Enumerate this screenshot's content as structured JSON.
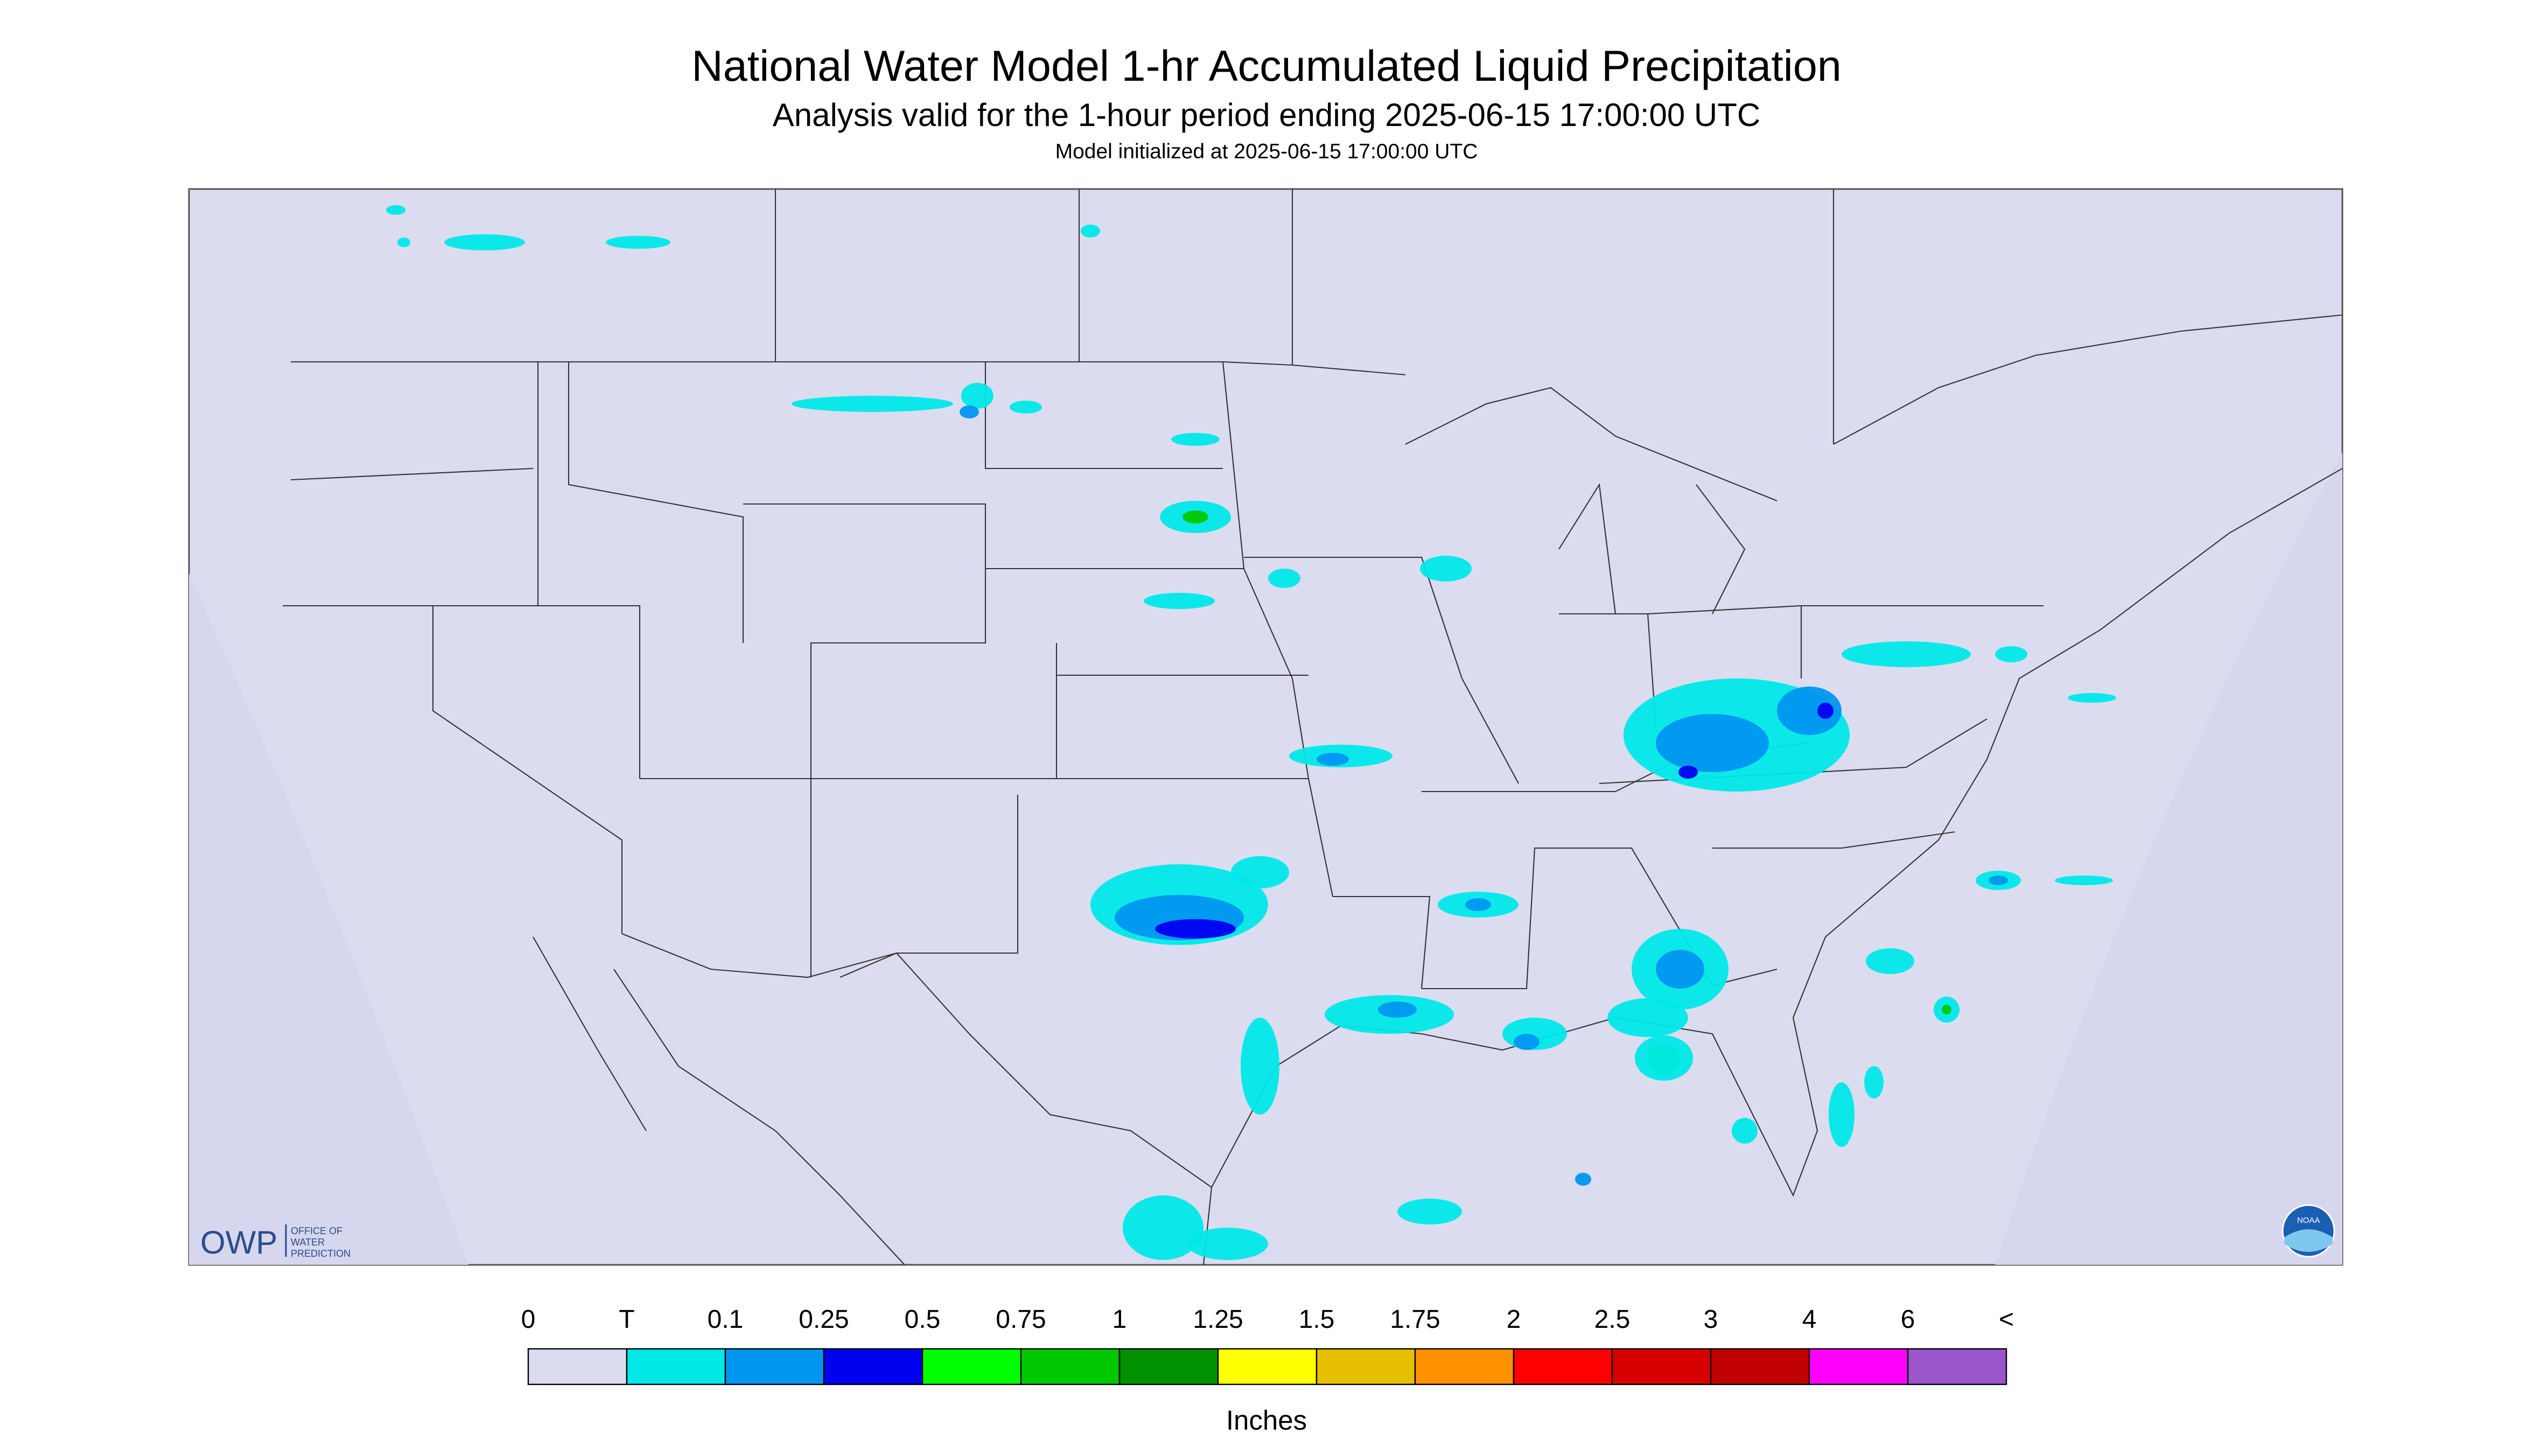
{
  "header": {
    "title": "National Water Model 1-hr Accumulated Liquid Precipitation",
    "subtitle": "Analysis valid for the 1-hour period ending 2025-06-15 17:00:00 UTC",
    "init": "Model initialized at 2025-06-15 17:00:00 UTC"
  },
  "legend": {
    "labels": [
      "0",
      "T",
      "0.1",
      "0.25",
      "0.5",
      "0.75",
      "1",
      "1.25",
      "1.5",
      "1.75",
      "2",
      "2.5",
      "3",
      "4",
      "6",
      "<"
    ],
    "colors": [
      "#dcdcf0",
      "#00e8e8",
      "#0096f0",
      "#0000f0",
      "#00ff00",
      "#00c800",
      "#009000",
      "#ffff00",
      "#e6c000",
      "#ff9000",
      "#ff0000",
      "#d60000",
      "#c00000",
      "#ff00ff",
      "#9955c9"
    ],
    "unit": "Inches"
  },
  "logo": {
    "owp": "OWP",
    "owp_text": [
      "OFFICE OF",
      "WATER",
      "PREDICTION"
    ],
    "noaa": "NOAA"
  }
}
